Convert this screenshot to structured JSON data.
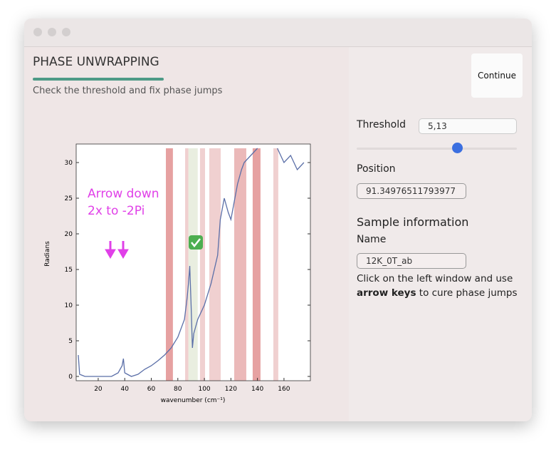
{
  "header": {
    "title": "PHASE UNWRAPPING",
    "subtitle": "Check the threshold and fix phase jumps",
    "button": "Continue"
  },
  "panel": {
    "threshold_label": "Threshold",
    "threshold_value": "5,13",
    "position_label": "Position",
    "position_value": "91.34976511793977",
    "section_title": "Sample information",
    "name_label": "Name",
    "name_value": "12K_0T_ab",
    "help_line1": "Click on the left window and use",
    "help_bold": "arrow keys",
    "help_rest": " to cure phase jumps"
  },
  "chart_data": {
    "type": "line",
    "xlabel": "wavenumber (cm⁻¹)",
    "ylabel": "Radians",
    "annotation": [
      "Arrow down",
      "2x to -2Pi"
    ],
    "xlim": [
      3.4,
      179.9
    ],
    "ylim": [
      -0.6,
      32.6
    ],
    "xticks": [
      20,
      40,
      60,
      80,
      100,
      120,
      140,
      160
    ],
    "yticks": [
      0,
      5,
      10,
      15,
      20,
      25,
      30
    ],
    "x": [
      5,
      6,
      10,
      20,
      30,
      35,
      38,
      39,
      40,
      42,
      45,
      50,
      55,
      60,
      65,
      70,
      75,
      80,
      85,
      87,
      88,
      89,
      90,
      91,
      92,
      95,
      100,
      105,
      110,
      112,
      115,
      118,
      120,
      122,
      125,
      128,
      130,
      135,
      140,
      145,
      150,
      155,
      160,
      165,
      170,
      175
    ],
    "series": [
      {
        "name": "phase",
        "color": "#5b6fa8",
        "values": [
          3,
          0.3,
          0,
          0,
          0,
          0.5,
          1.5,
          2.5,
          0.5,
          0.3,
          0,
          0.3,
          1,
          1.5,
          2.2,
          3,
          4,
          5.5,
          8,
          11,
          13,
          15.5,
          10,
          4,
          6,
          8,
          10,
          13,
          17,
          22,
          25,
          23,
          22,
          24,
          27,
          29,
          30,
          31,
          32,
          null,
          null,
          32,
          30,
          31,
          29,
          30
        ]
      }
    ],
    "bands": [
      {
        "x0": 71,
        "x1": 76.3,
        "color": "#e08a8a"
      },
      {
        "x0": 85.5,
        "x1": 88,
        "color": "#ecc4c4"
      },
      {
        "x0": 88,
        "x1": 95,
        "color": "#e4ead8"
      },
      {
        "x0": 96.7,
        "x1": 100.5,
        "color": "#ecc4c4"
      },
      {
        "x0": 103.7,
        "x1": 112.3,
        "color": "#ecc4c4"
      },
      {
        "x0": 122.5,
        "x1": 131.6,
        "color": "#e6a8a8"
      },
      {
        "x0": 136.4,
        "x1": 142.3,
        "color": "#e08a8a"
      },
      {
        "x0": 152,
        "x1": 155.7,
        "color": "#ecc4c4"
      }
    ]
  }
}
